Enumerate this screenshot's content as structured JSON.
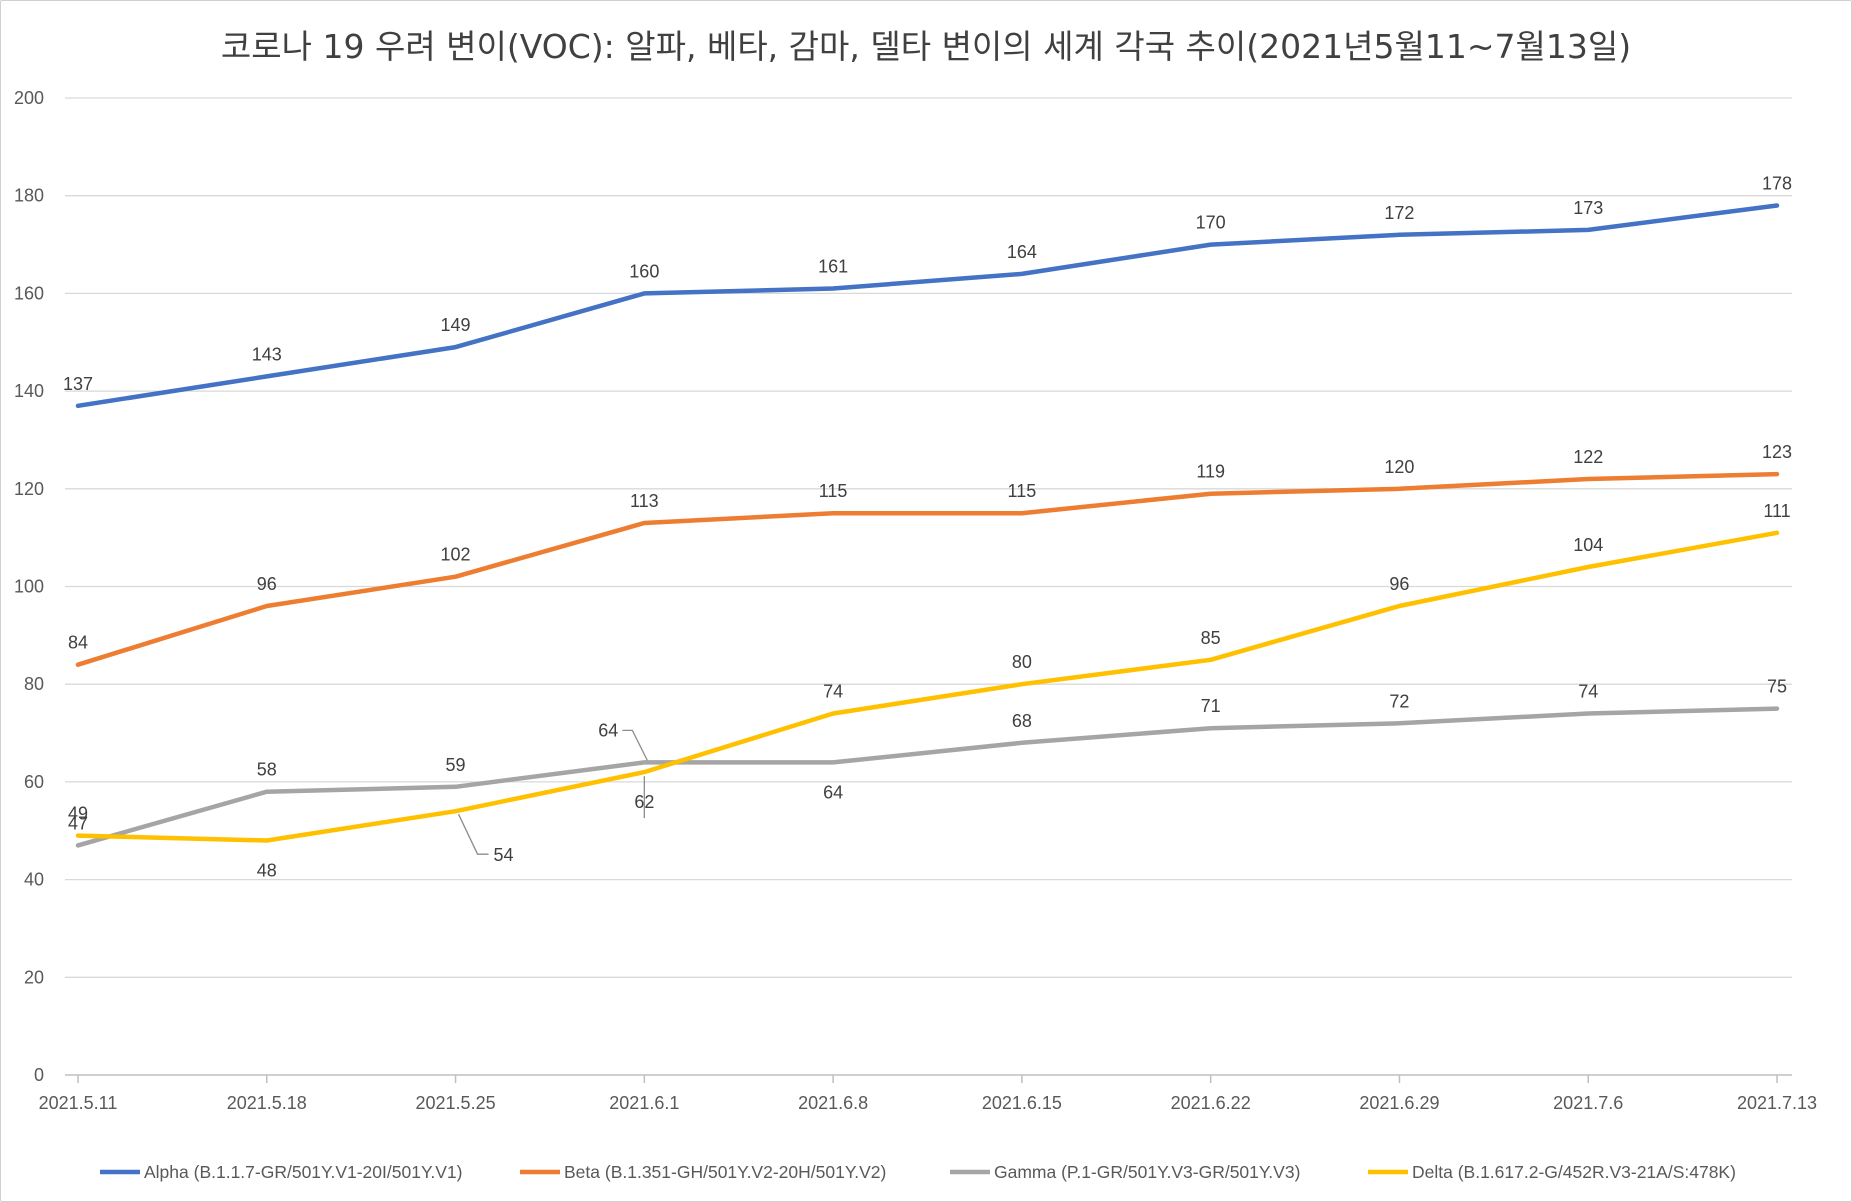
{
  "chart_data": {
    "type": "line",
    "title": "코로나 19 우려 변이(VOC): 알파, 베타, 감마, 델타 변이의 세계 각국 추이(2021년5월11~7월13일)",
    "xlabel": "",
    "ylabel": "",
    "ylim": [
      0,
      200
    ],
    "yticks": [
      0,
      20,
      40,
      60,
      80,
      100,
      120,
      140,
      160,
      180,
      200
    ],
    "grid": true,
    "legend_position": "bottom",
    "categories": [
      "2021.5.11",
      "2021.5.18",
      "2021.5.25",
      "2021.6.1",
      "2021.6.8",
      "2021.6.15",
      "2021.6.22",
      "2021.6.29",
      "2021.7.6",
      "2021.7.13"
    ],
    "series": [
      {
        "name": "Alpha (B.1.1.7-GR/501Y.V1-20I/501Y.V1)",
        "color": "#4472C4",
        "values": [
          137,
          143,
          149,
          160,
          161,
          164,
          170,
          172,
          173,
          178
        ]
      },
      {
        "name": "Beta (B.1.351-GH/501Y.V2-20H/501Y.V2)",
        "color": "#ED7D31",
        "values": [
          84,
          96,
          102,
          113,
          115,
          115,
          119,
          120,
          122,
          123
        ]
      },
      {
        "name": "Gamma (P.1-GR/501Y.V3-GR/501Y.V3)",
        "color": "#A5A5A5",
        "values": [
          47,
          58,
          59,
          64,
          64,
          68,
          71,
          72,
          74,
          75
        ]
      },
      {
        "name": "Delta (B.1.617.2-G/452R.V3-21A/S:478K)",
        "color": "#FFC000",
        "values": [
          49,
          48,
          54,
          62,
          74,
          80,
          85,
          96,
          104,
          111
        ]
      }
    ]
  }
}
